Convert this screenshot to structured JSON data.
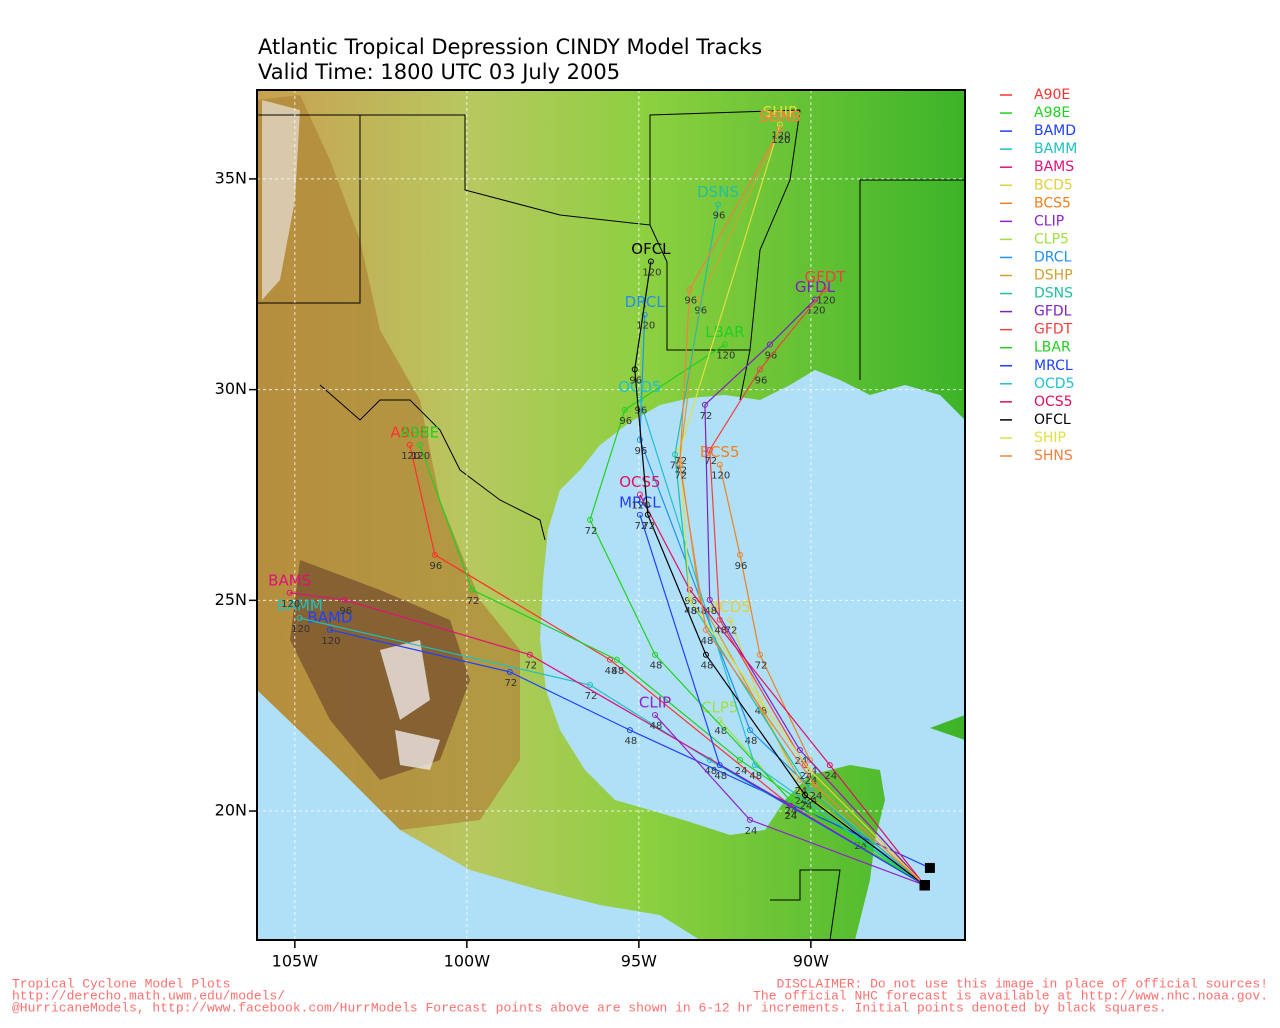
{
  "title": "Atlantic Tropical Depression CINDY Model Tracks",
  "subtitle": "Valid Time: 1800 UTC 03 July 2005",
  "map": {
    "xlim": [
      -106.1,
      -85.52
    ],
    "ylim": [
      16.94,
      37.11
    ],
    "xticks": [
      {
        "value": -105,
        "label": "105W"
      },
      {
        "value": -100,
        "label": "100W"
      },
      {
        "value": -95,
        "label": "95W"
      },
      {
        "value": -90,
        "label": "90W"
      }
    ],
    "yticks": [
      {
        "value": 35,
        "label": "35N"
      },
      {
        "value": 30,
        "label": "30N"
      },
      {
        "value": 25,
        "label": "25N"
      },
      {
        "value": 20,
        "label": "20N"
      }
    ],
    "grid": true
  },
  "tracks": [
    {
      "name": "A90E",
      "color": "#ff3030",
      "lon": [
        -86.69,
        -90.61,
        -95.84,
        -100.93,
        -101.66
      ],
      "lat": [
        18.24,
        20.14,
        23.59,
        26.08,
        28.69
      ],
      "hours": [
        null,
        24,
        48,
        96,
        120
      ]
    },
    {
      "name": "A98E",
      "color": "#20d020",
      "lon": [
        -86.69,
        -92.06,
        -95.64,
        -99.85,
        -101.37
      ],
      "lat": [
        18.24,
        21.21,
        23.59,
        25.25,
        28.69
      ],
      "hours": [
        null,
        24,
        48,
        72,
        120
      ]
    },
    {
      "name": "BAMD",
      "color": "#2040ff",
      "lon": [
        -86.54,
        -95.26,
        -98.75,
        -103.98
      ],
      "lat": [
        18.65,
        21.92,
        23.3,
        24.3
      ],
      "hours": [
        null,
        48,
        72,
        120
      ]
    },
    {
      "name": "BAMM",
      "color": "#20c0c0",
      "lon": [
        -86.69,
        -92.94,
        -96.42,
        -104.86
      ],
      "lat": [
        18.24,
        21.21,
        22.99,
        24.58
      ],
      "hours": [
        null,
        48,
        72,
        120
      ]
    },
    {
      "name": "BAMS",
      "color": "#e0107a",
      "lon": [
        -86.69,
        -90.61,
        -98.17,
        -103.55,
        -105.15
      ],
      "lat": [
        18.24,
        20.14,
        23.71,
        25.01,
        25.18
      ],
      "hours": [
        null,
        24,
        72,
        96,
        120
      ]
    },
    {
      "name": "BCD5",
      "color": "#e0d040",
      "lon": [
        -86.69,
        -90.32,
        -91.48,
        -92.35
      ],
      "lat": [
        18.24,
        20.5,
        22.64,
        24.54
      ],
      "hours": [
        null,
        24,
        48,
        72
      ]
    },
    {
      "name": "BCS5",
      "color": "#f08020",
      "lon": [
        -86.69,
        -90.03,
        -91.48,
        -92.06,
        -92.65
      ],
      "lat": [
        18.24,
        21.21,
        23.71,
        26.08,
        28.22
      ],
      "hours": [
        null,
        24,
        72,
        96,
        120
      ]
    },
    {
      "name": "CLIP",
      "color": "#9020d0",
      "lon": [
        -86.69,
        -91.77,
        -94.53
      ],
      "lat": [
        18.24,
        19.79,
        22.28
      ],
      "hours": [
        null,
        24,
        48
      ]
    },
    {
      "name": "CLP5",
      "color": "#a0e040",
      "lon": [
        -86.69,
        -90.61,
        -92.65
      ],
      "lat": [
        18.24,
        20.26,
        22.16
      ],
      "hours": [
        null,
        24,
        48
      ]
    },
    {
      "name": "DRCL",
      "color": "#2090f0",
      "lon": [
        -86.69,
        -88.58,
        -91.77,
        -94.97,
        -94.83
      ],
      "lat": [
        18.24,
        19.43,
        21.92,
        28.81,
        31.78
      ],
      "hours": [
        null,
        24,
        48,
        96,
        120
      ]
    },
    {
      "name": "DSHP",
      "color": "#d0a030",
      "lon": [
        -86.69,
        -90.32,
        -93.23,
        -93.81,
        -93.23,
        -90.9
      ],
      "lat": [
        18.24,
        20.74,
        25.01,
        28.34,
        32.14,
        36.18
      ],
      "hours": [
        null,
        24,
        48,
        72,
        96,
        120
      ]
    },
    {
      "name": "DSNS",
      "color": "#20c0a0",
      "lon": [
        -86.69,
        -90.03,
        -93.52,
        -93.95,
        -92.7
      ],
      "lat": [
        18.24,
        20.5,
        25.01,
        28.46,
        34.39
      ],
      "hours": [
        null,
        24,
        48,
        72,
        96
      ]
    },
    {
      "name": "GFDL",
      "color": "#8020c0",
      "lon": [
        -86.69,
        -90.32,
        -92.94,
        -93.08,
        -91.19,
        -89.88
      ],
      "lat": [
        18.24,
        21.45,
        25.01,
        29.64,
        31.07,
        32.14
      ],
      "hours": [
        null,
        24,
        48,
        72,
        96,
        120
      ]
    },
    {
      "name": "GFDT",
      "color": "#f04040",
      "lon": [
        -86.69,
        -90.17,
        -92.65,
        -92.94,
        -91.48,
        -89.59
      ],
      "lat": [
        18.24,
        21.09,
        24.54,
        28.57,
        30.48,
        32.38
      ],
      "hours": [
        null,
        24,
        48,
        72,
        96,
        120
      ]
    },
    {
      "name": "LBAR",
      "color": "#20d020",
      "lon": [
        -86.69,
        -90.61,
        -94.53,
        -96.42,
        -95.41,
        -92.5
      ],
      "lat": [
        18.24,
        20.26,
        23.71,
        26.91,
        29.52,
        31.07
      ],
      "hours": [
        null,
        24,
        48,
        72,
        96,
        120
      ]
    },
    {
      "name": "MRCL",
      "color": "#2040ff",
      "lon": [
        -86.69,
        -92.65,
        -94.97
      ],
      "lat": [
        18.24,
        21.09,
        27.03
      ],
      "hours": [
        null,
        48,
        72
      ]
    },
    {
      "name": "OCD5",
      "color": "#20c0d0",
      "lon": [
        -86.69,
        -91.63,
        -94.97
      ],
      "lat": [
        18.24,
        21.09,
        29.76
      ],
      "hours": [
        null,
        48,
        96
      ]
    },
    {
      "name": "OCS5",
      "color": "#e01060",
      "lon": [
        -86.69,
        -89.45,
        -93.52,
        -94.97
      ],
      "lat": [
        18.24,
        21.09,
        25.25,
        27.51
      ],
      "hours": [
        null,
        24,
        96,
        120
      ]
    },
    {
      "name": "OFCL",
      "color": "#000000",
      "lon": [
        -86.69,
        -90.17,
        -93.05,
        -94.74,
        -95.12,
        -94.65
      ],
      "lat": [
        18.24,
        20.38,
        23.71,
        27.03,
        30.48,
        33.04
      ],
      "hours": [
        null,
        24,
        48,
        72,
        96,
        120
      ]
    },
    {
      "name": "SHIP",
      "color": "#e0e040",
      "lon": [
        -86.69,
        -90.03,
        -93.52,
        -93.81,
        -90.9
      ],
      "lat": [
        18.24,
        20.97,
        25.01,
        28.57,
        36.29
      ],
      "hours": [
        null,
        24,
        48,
        72,
        120
      ]
    },
    {
      "name": "SHNS",
      "color": "#f08040",
      "lon": [
        -86.69,
        -89.88,
        -93.05,
        -93.81,
        -93.52,
        -90.9
      ],
      "lat": [
        18.24,
        20.62,
        24.3,
        28.22,
        32.38,
        36.18
      ],
      "hours": [
        null,
        24,
        48,
        72,
        96,
        120
      ]
    }
  ],
  "footer": {
    "left": [
      "Tropical Cyclone Model Plots",
      "http://derecho.math.uwm.edu/models/",
      "@HurricaneModels, http://www.facebook.com/HurrModels  Forecast points above are shown in 6-12 hr increments. Initial points denoted by black squares."
    ],
    "right": [
      "DISCLAIMER: Do not use this image in place of official sources!",
      "The official NHC forecast is available at http://www.nhc.noaa.gov."
    ]
  }
}
